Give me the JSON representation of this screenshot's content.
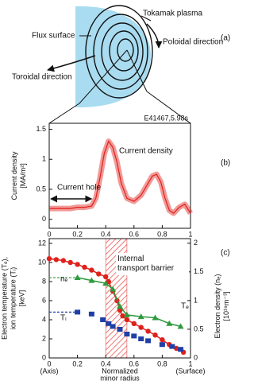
{
  "diagram": {
    "labels": [
      "Tokamak plasma",
      "Flux surface",
      "Poloidal direction",
      "Toroidal direction"
    ]
  },
  "panel_labels": [
    "(a)",
    "(b)",
    "(c)"
  ],
  "chart_data": [
    {
      "type": "line",
      "annotation": "E41467,5.98s",
      "series_label": "Current density",
      "hole_label": "Current hole",
      "ylabel": [
        "Current density",
        "[MA/m²]"
      ],
      "color": "#e0201b",
      "x": [
        0,
        0.05,
        0.1,
        0.15,
        0.2,
        0.25,
        0.3,
        0.33,
        0.36,
        0.39,
        0.42,
        0.45,
        0.48,
        0.51,
        0.55,
        0.6,
        0.65,
        0.7,
        0.73,
        0.76,
        0.79,
        0.82,
        0.85,
        0.88,
        0.92,
        0.96,
        1
      ],
      "values": [
        0.18,
        0.18,
        0.18,
        0.18,
        0.2,
        0.2,
        0.22,
        0.35,
        0.7,
        1.1,
        1.3,
        1.2,
        0.95,
        0.6,
        0.35,
        0.3,
        0.4,
        0.6,
        0.72,
        0.75,
        0.62,
        0.35,
        0.15,
        0.1,
        0.2,
        0.25,
        0.1
      ],
      "xlim": [
        0,
        1
      ],
      "xticks": [
        0,
        0.2,
        0.4,
        0.6,
        0.8,
        1
      ],
      "ylim": [
        -0.15,
        1.6
      ],
      "yticks": [
        0,
        0.5,
        1,
        1.5
      ]
    },
    {
      "type": "scatter",
      "annotation": "Internal transport barrier",
      "barrier_x": [
        0.4,
        0.55
      ],
      "ylabel": [
        "Electron temperature (Tₑ),",
        "ion temperature (Tᵢ)",
        "[keV]"
      ],
      "y2label": [
        "Electron density (nₑ)",
        "[10¹⁹m⁻³]"
      ],
      "xlabel": [
        "(Axis)",
        "Normalized",
        "minor radius",
        "(Surface)"
      ],
      "xlim": [
        0,
        1
      ],
      "xticks": [
        0,
        0.2,
        0.4,
        0.6,
        0.8,
        1
      ],
      "ylim": [
        0,
        12.5
      ],
      "yticks": [
        0,
        2,
        4,
        6,
        8,
        10,
        12
      ],
      "y2lim": [
        0,
        2.08
      ],
      "y2ticks": [
        0,
        0.5,
        1,
        1.5,
        2
      ],
      "series": [
        {
          "name": "Tₑ",
          "color": "#e0201b",
          "marker": "circle",
          "connect": true,
          "x": [
            0,
            0.05,
            0.1,
            0.15,
            0.2,
            0.25,
            0.3,
            0.35,
            0.4,
            0.42,
            0.45,
            0.48,
            0.5,
            0.52,
            0.55,
            0.6,
            0.65,
            0.7,
            0.75,
            0.8,
            0.85,
            0.9,
            0.95
          ],
          "values": [
            10.4,
            10.3,
            10.2,
            10,
            9.8,
            9.5,
            9.2,
            8.8,
            8.5,
            8,
            7,
            6,
            5,
            4.4,
            4,
            3.6,
            3.2,
            2.8,
            2.4,
            1.9,
            1.4,
            1,
            0.6
          ]
        },
        {
          "name": "nₑ",
          "color": "#2e9a3e",
          "marker": "triangle",
          "axis": "y2",
          "connect": true,
          "x": [
            0.2,
            0.3,
            0.4,
            0.45,
            0.5,
            0.55,
            0.65,
            0.75,
            0.85,
            0.93
          ],
          "values": [
            1.4,
            1.35,
            1.3,
            1.2,
            0.9,
            0.75,
            0.72,
            0.7,
            0.6,
            0.55
          ]
        },
        {
          "name": "Tᵢ",
          "color": "#1f3fa6",
          "marker": "square",
          "connect": false,
          "x": [
            0.2,
            0.3,
            0.38,
            0.42,
            0.45,
            0.5,
            0.55,
            0.6,
            0.65,
            0.7,
            0.8,
            0.87,
            0.93
          ],
          "values": [
            4.8,
            4.6,
            4,
            3.6,
            3.3,
            3,
            2.5,
            2.3,
            2,
            1.8,
            1.4,
            1.2,
            0.9
          ]
        }
      ]
    }
  ]
}
